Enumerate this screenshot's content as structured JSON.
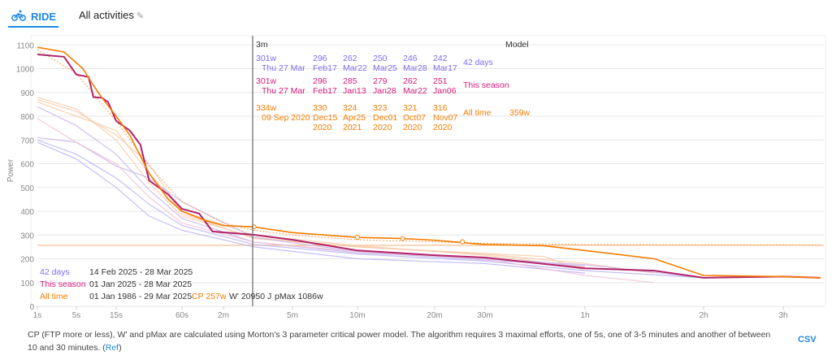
{
  "header": {
    "tab_label": "RIDE",
    "tab_icon": "bicycle-icon",
    "title": "All activities"
  },
  "colors": {
    "days42": "#7b6cf6",
    "season": "#d81b7a",
    "alltime": "#f57c00",
    "accent": "#1e88e5"
  },
  "chart_data": {
    "type": "line",
    "ylabel": "Power",
    "ylim": [
      0,
      1100
    ],
    "yticks": [
      0,
      100,
      200,
      300,
      400,
      500,
      600,
      700,
      800,
      900,
      1000,
      1100
    ],
    "x_scale": "log-like duration",
    "xticks": [
      {
        "s": 1,
        "label": "1s"
      },
      {
        "s": 5,
        "label": "5s"
      },
      {
        "s": 15,
        "label": "15s"
      },
      {
        "s": 60,
        "label": "60s"
      },
      {
        "s": 120,
        "label": "2m"
      },
      {
        "s": 300,
        "label": "5m"
      },
      {
        "s": 600,
        "label": "10m"
      },
      {
        "s": 1200,
        "label": "20m"
      },
      {
        "s": 1800,
        "label": "30m"
      },
      {
        "s": 3600,
        "label": "1h"
      },
      {
        "s": 7200,
        "label": "2h"
      },
      {
        "s": 10800,
        "label": "3h"
      }
    ],
    "grid": true,
    "cursor": {
      "label": "3m",
      "s": 180
    },
    "cp_line": 257,
    "series": [
      {
        "name": "All time",
        "color": "#f57c00",
        "width": 1.6,
        "points": [
          [
            1,
            1090
          ],
          [
            3,
            1070
          ],
          [
            6,
            1000
          ],
          [
            8,
            930
          ],
          [
            10,
            880
          ],
          [
            15,
            800
          ],
          [
            20,
            720
          ],
          [
            30,
            560
          ],
          [
            45,
            450
          ],
          [
            60,
            400
          ],
          [
            90,
            360
          ],
          [
            120,
            340
          ],
          [
            180,
            334
          ],
          [
            300,
            310
          ],
          [
            600,
            290
          ],
          [
            900,
            285
          ],
          [
            1200,
            278
          ],
          [
            1800,
            260
          ],
          [
            2700,
            255
          ],
          [
            3600,
            235
          ],
          [
            5400,
            200
          ],
          [
            7200,
            130
          ],
          [
            10800,
            125
          ],
          [
            14400,
            120
          ]
        ]
      },
      {
        "name": "This season",
        "color": "#b0236a",
        "width": 2,
        "points": [
          [
            1,
            1060
          ],
          [
            3,
            1050
          ],
          [
            5,
            975
          ],
          [
            7,
            965
          ],
          [
            8,
            880
          ],
          [
            10,
            878
          ],
          [
            12,
            860
          ],
          [
            15,
            780
          ],
          [
            20,
            740
          ],
          [
            25,
            680
          ],
          [
            30,
            530
          ],
          [
            45,
            470
          ],
          [
            60,
            410
          ],
          [
            80,
            390
          ],
          [
            100,
            315
          ],
          [
            180,
            301
          ],
          [
            300,
            280
          ],
          [
            600,
            235
          ],
          [
            1200,
            215
          ],
          [
            1800,
            205
          ],
          [
            3600,
            160
          ],
          [
            5400,
            150
          ],
          [
            7200,
            120
          ],
          [
            10800,
            125
          ],
          [
            14400,
            120
          ]
        ]
      },
      {
        "name": "Model",
        "color": "#f5a05a",
        "width": 1,
        "dash": "2,2",
        "points": [
          [
            1,
            1080
          ],
          [
            5,
            980
          ],
          [
            15,
            780
          ],
          [
            30,
            590
          ],
          [
            60,
            440
          ],
          [
            120,
            350
          ],
          [
            180,
            320
          ],
          [
            300,
            300
          ],
          [
            600,
            280
          ],
          [
            1800,
            265
          ],
          [
            3600,
            260
          ],
          [
            14400,
            258
          ]
        ]
      }
    ],
    "faint_series": [
      {
        "color": "#f8c9a6",
        "points": [
          [
            1,
            880
          ],
          [
            5,
            830
          ],
          [
            15,
            700
          ],
          [
            30,
            520
          ],
          [
            60,
            380
          ],
          [
            180,
            290
          ],
          [
            600,
            250
          ],
          [
            1800,
            220
          ],
          [
            3600,
            180
          ],
          [
            5400,
            140
          ]
        ]
      },
      {
        "color": "#f8c9a6",
        "points": [
          [
            1,
            860
          ],
          [
            5,
            800
          ],
          [
            15,
            740
          ],
          [
            30,
            560
          ],
          [
            60,
            400
          ],
          [
            180,
            300
          ],
          [
            600,
            255
          ],
          [
            1800,
            215
          ],
          [
            3600,
            165
          ]
        ]
      },
      {
        "color": "#f8c9a6",
        "points": [
          [
            1,
            870
          ],
          [
            5,
            820
          ],
          [
            15,
            720
          ],
          [
            30,
            600
          ],
          [
            60,
            390
          ],
          [
            180,
            285
          ],
          [
            600,
            250
          ],
          [
            2700,
            210
          ],
          [
            3600,
            150
          ]
        ]
      },
      {
        "color": "#c9b3ea",
        "points": [
          [
            1,
            840
          ],
          [
            5,
            760
          ],
          [
            15,
            640
          ],
          [
            30,
            490
          ],
          [
            60,
            370
          ],
          [
            180,
            270
          ],
          [
            600,
            225
          ],
          [
            1800,
            200
          ],
          [
            3600,
            175
          ],
          [
            7200,
            120
          ]
        ]
      },
      {
        "color": "#c9b3ea",
        "points": [
          [
            1,
            710
          ],
          [
            5,
            690
          ],
          [
            15,
            590
          ],
          [
            30,
            540
          ],
          [
            60,
            440
          ],
          [
            180,
            290
          ],
          [
            600,
            230
          ],
          [
            1800,
            195
          ],
          [
            3600,
            170
          ]
        ]
      },
      {
        "color": "#b9b3f5",
        "points": [
          [
            1,
            700
          ],
          [
            5,
            640
          ],
          [
            15,
            540
          ],
          [
            30,
            430
          ],
          [
            60,
            340
          ],
          [
            180,
            260
          ],
          [
            600,
            220
          ],
          [
            1800,
            190
          ],
          [
            3600,
            150
          ],
          [
            7200,
            120
          ]
        ]
      },
      {
        "color": "#b9b3f5",
        "points": [
          [
            1,
            690
          ],
          [
            5,
            620
          ],
          [
            15,
            500
          ],
          [
            30,
            380
          ],
          [
            60,
            320
          ],
          [
            180,
            250
          ],
          [
            600,
            200
          ],
          [
            1800,
            180
          ],
          [
            3600,
            140
          ]
        ]
      },
      {
        "color": "#f0bfd6",
        "points": [
          [
            1,
            790
          ],
          [
            5,
            690
          ],
          [
            15,
            600
          ],
          [
            30,
            460
          ],
          [
            60,
            350
          ],
          [
            180,
            270
          ],
          [
            600,
            230
          ],
          [
            1800,
            200
          ],
          [
            3600,
            130
          ],
          [
            5400,
            100
          ]
        ]
      }
    ],
    "markers": [
      [
        180,
        334
      ],
      [
        600,
        290
      ],
      [
        900,
        285
      ],
      [
        1500,
        272
      ]
    ],
    "tooltip": {
      "duration": "3m",
      "model_label": "Model",
      "rows": [
        {
          "label": "42 days",
          "best": "301w",
          "date": "Thu 27 Mar",
          "others": [
            [
              "296",
              "Feb17"
            ],
            [
              "262",
              "Mar22"
            ],
            [
              "250",
              "Mar25"
            ],
            [
              "246",
              "Mar28"
            ],
            [
              "242",
              "Mar17"
            ]
          ],
          "extra": ""
        },
        {
          "label": "This season",
          "best": "301w",
          "date": "Thu 27 Mar",
          "others": [
            [
              "296",
              "Feb17"
            ],
            [
              "285",
              "Jan13"
            ],
            [
              "279",
              "Jan28"
            ],
            [
              "262",
              "Mar22"
            ],
            [
              "251",
              "Jan06"
            ]
          ],
          "extra": ""
        },
        {
          "label": "All time",
          "best": "334w",
          "date": "09 Sep 2020",
          "others": [
            [
              "330",
              "Dec15 2020"
            ],
            [
              "324",
              "Apr25 2021"
            ],
            [
              "323",
              "Dec01 2020"
            ],
            [
              "321",
              "Oct07 2020"
            ],
            [
              "316",
              "Nov07 2020"
            ]
          ],
          "extra": "359w"
        }
      ]
    },
    "legend": [
      {
        "label": "42 days",
        "range": "14 Feb 2025 - 28 Mar 2025"
      },
      {
        "label": "This season",
        "range": "01 Jan 2025 - 28 Mar 2025"
      },
      {
        "label": "All time",
        "range": "01 Jan 1986 - 29 Mar 2025",
        "cp": "CP 257w",
        "wprime": "W' 20950 J",
        "pmax": "pMax 1086w"
      }
    ]
  },
  "footer": {
    "text": "CP (FTP more or less), W' and pMax are calculated using Morton's 3 parameter critical power model. The algorithm requires 3 maximal efforts, one of 5s, one of 3-5 minutes and another of between 10 and 30 minutes. (",
    "ref": "Ref",
    "close": ")",
    "csv": "CSV"
  }
}
